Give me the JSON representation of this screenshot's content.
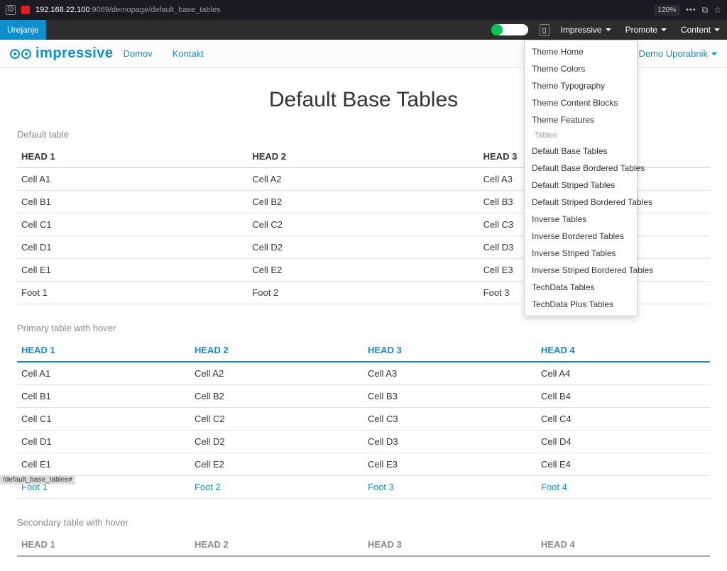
{
  "browser": {
    "url_prefix": "192.168.22.100",
    "url_suffix": ":9069/demopage/default_base_tables",
    "zoom": "120%"
  },
  "builder": {
    "edit_label": "Urejanje",
    "menu_impressive": "Impressive",
    "menu_promote": "Promote",
    "menu_content": "Content"
  },
  "nav": {
    "brand": "impressive",
    "home": "Domov",
    "contact": "Kontakt",
    "user": "Demo Uporabnik"
  },
  "dropdown": {
    "items": [
      "Theme Home",
      "Theme Colors",
      "Theme Typography",
      "Theme Content Blocks",
      "Theme Features"
    ],
    "section_header": "Tables",
    "table_items": [
      "Default Base Tables",
      "Default Base Bordered Tables",
      "Default Striped Tables",
      "Default Striped Bordered Tables",
      "Inverse Tables",
      "Inverse Bordered Tables",
      "Inverse Striped Tables",
      "Inverse Striped Bordered Tables",
      "TechData Tables",
      "TechData Plus Tables"
    ]
  },
  "page": {
    "title": "Default Base Tables",
    "section1": "Default table",
    "section2": "Primary table with hover",
    "section3": "Secondary table with hover"
  },
  "t1": {
    "h1": "HEAD 1",
    "h2": "HEAD 2",
    "h3": "HEAD 3",
    "rows": [
      [
        "Cell A1",
        "Cell A2",
        "Cell A3"
      ],
      [
        "Cell B1",
        "Cell B2",
        "Cell B3"
      ],
      [
        "Cell C1",
        "Cell C2",
        "Cell C3"
      ],
      [
        "Cell D1",
        "Cell D2",
        "Cell D3"
      ],
      [
        "Cell E1",
        "Cell E2",
        "Cell E3"
      ]
    ],
    "f1": "Foot 1",
    "f2": "Foot 2",
    "f3": "Foot 3"
  },
  "t2": {
    "h1": "HEAD 1",
    "h2": "HEAD 2",
    "h3": "HEAD 3",
    "h4": "HEAD 4",
    "rows": [
      [
        "Cell A1",
        "Cell A2",
        "Cell A3",
        "Cell A4"
      ],
      [
        "Cell B1",
        "Cell B2",
        "Cell B3",
        "Cell B4"
      ],
      [
        "Cell C1",
        "Cell C2",
        "Cell C3",
        "Cell C4"
      ],
      [
        "Cell D1",
        "Cell D2",
        "Cell D3",
        "Cell D4"
      ],
      [
        "Cell E1",
        "Cell E2",
        "Cell E3",
        "Cell E4"
      ]
    ],
    "f1": "Foot 1",
    "f2": "Foot 2",
    "f3": "Foot 3",
    "f4": "Foot 4"
  },
  "t3": {
    "h1": "HEAD 1",
    "h2": "HEAD 2",
    "h3": "HEAD 3",
    "h4": "HEAD 4"
  },
  "status": "/default_base_tables#"
}
